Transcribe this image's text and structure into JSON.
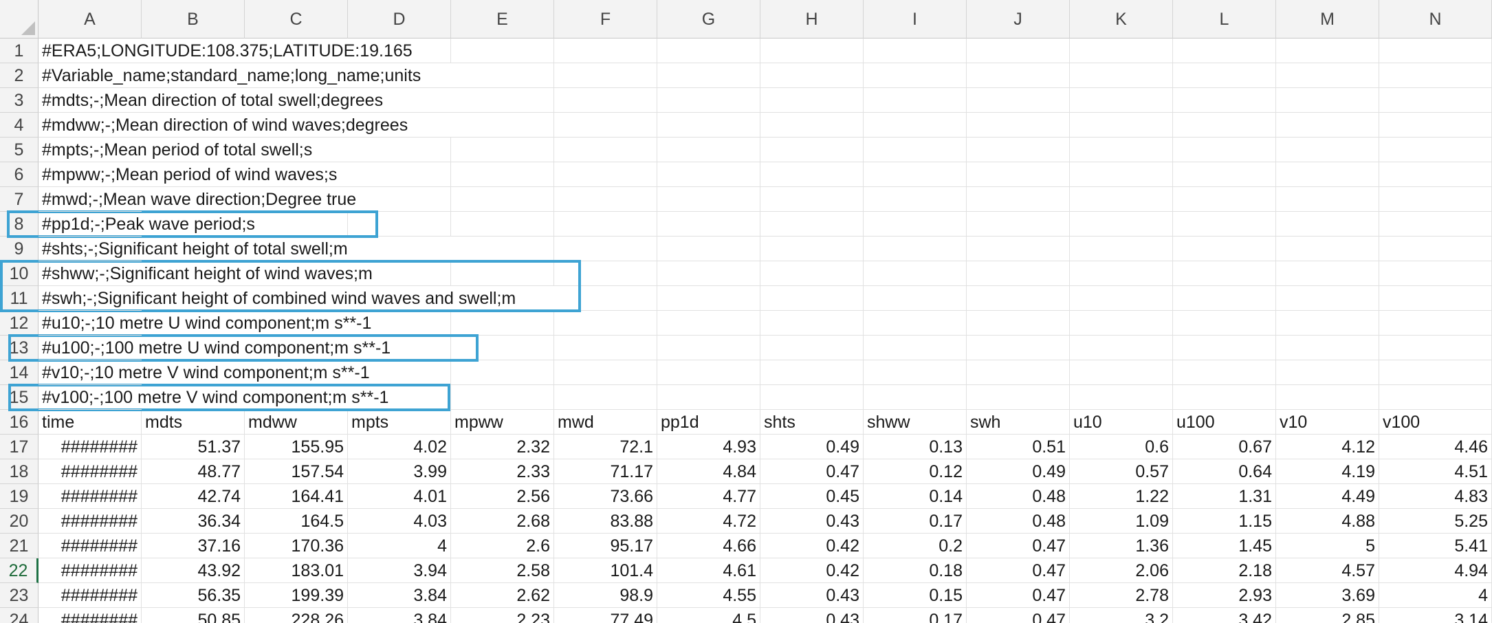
{
  "columns": [
    "A",
    "B",
    "C",
    "D",
    "E",
    "F",
    "G",
    "H",
    "I",
    "J",
    "K",
    "L",
    "M",
    "N"
  ],
  "metadata_rows": [
    {
      "row": "1",
      "text": "#ERA5;LONGITUDE:108.375;LATITUDE:19.165"
    },
    {
      "row": "2",
      "text": "#Variable_name;standard_name;long_name;units"
    },
    {
      "row": "3",
      "text": "#mdts;-;Mean direction of total swell;degrees"
    },
    {
      "row": "4",
      "text": "#mdww;-;Mean direction of wind waves;degrees"
    },
    {
      "row": "5",
      "text": "#mpts;-;Mean period of total swell;s"
    },
    {
      "row": "6",
      "text": "#mpww;-;Mean period of wind waves;s"
    },
    {
      "row": "7",
      "text": "#mwd;-;Mean wave direction;Degree true"
    },
    {
      "row": "8",
      "text": "#pp1d;-;Peak wave period;s"
    },
    {
      "row": "9",
      "text": "#shts;-;Significant height of total swell;m"
    },
    {
      "row": "10",
      "text": "#shww;-;Significant height of wind waves;m"
    },
    {
      "row": "11",
      "text": "#swh;-;Significant height of combined wind waves and swell;m"
    },
    {
      "row": "12",
      "text": "#u10;-;10 metre U wind component;m s**-1"
    },
    {
      "row": "13",
      "text": "#u100;-;100 metre U wind component;m s**-1"
    },
    {
      "row": "14",
      "text": "#v10;-;10 metre V wind component;m s**-1"
    },
    {
      "row": "15",
      "text": "#v100;-;100 metre V wind component;m s**-1"
    }
  ],
  "header_row": {
    "row": "16",
    "cells": [
      "time",
      "mdts",
      "mdww",
      "mpts",
      "mpww",
      "mwd",
      "pp1d",
      "shts",
      "shww",
      "swh",
      "u10",
      "u100",
      "v10",
      "v100"
    ]
  },
  "data_rows": [
    {
      "row": "17",
      "cells": [
        "########",
        "51.37",
        "155.95",
        "4.02",
        "2.32",
        "72.1",
        "4.93",
        "0.49",
        "0.13",
        "0.51",
        "0.6",
        "0.67",
        "4.12",
        "4.46"
      ]
    },
    {
      "row": "18",
      "cells": [
        "########",
        "48.77",
        "157.54",
        "3.99",
        "2.33",
        "71.17",
        "4.84",
        "0.47",
        "0.12",
        "0.49",
        "0.57",
        "0.64",
        "4.19",
        "4.51"
      ]
    },
    {
      "row": "19",
      "cells": [
        "########",
        "42.74",
        "164.41",
        "4.01",
        "2.56",
        "73.66",
        "4.77",
        "0.45",
        "0.14",
        "0.48",
        "1.22",
        "1.31",
        "4.49",
        "4.83"
      ]
    },
    {
      "row": "20",
      "cells": [
        "########",
        "36.34",
        "164.5",
        "4.03",
        "2.68",
        "83.88",
        "4.72",
        "0.43",
        "0.17",
        "0.48",
        "1.09",
        "1.15",
        "4.88",
        "5.25"
      ]
    },
    {
      "row": "21",
      "cells": [
        "########",
        "37.16",
        "170.36",
        "4",
        "2.6",
        "95.17",
        "4.66",
        "0.42",
        "0.2",
        "0.47",
        "1.36",
        "1.45",
        "5",
        "5.41"
      ]
    },
    {
      "row": "22",
      "cells": [
        "########",
        "43.92",
        "183.01",
        "3.94",
        "2.58",
        "101.4",
        "4.61",
        "0.42",
        "0.18",
        "0.47",
        "2.06",
        "2.18",
        "4.57",
        "4.94"
      ]
    },
    {
      "row": "23",
      "cells": [
        "########",
        "56.35",
        "199.39",
        "3.84",
        "2.62",
        "98.9",
        "4.55",
        "0.43",
        "0.15",
        "0.47",
        "2.78",
        "2.93",
        "3.69",
        "4"
      ]
    },
    {
      "row": "24",
      "cells": [
        "########",
        "50.85",
        "228.26",
        "3.84",
        "2.23",
        "77.49",
        "4.5",
        "0.43",
        "0.17",
        "0.47",
        "3.2",
        "3.42",
        "2.85",
        "3.14"
      ]
    }
  ],
  "active_row": "22",
  "highlight_color": "#3ea3d3",
  "highlights": [
    {
      "rows": [
        "8"
      ]
    },
    {
      "rows": [
        "10",
        "11"
      ]
    },
    {
      "rows": [
        "13"
      ]
    },
    {
      "rows": [
        "15"
      ]
    }
  ]
}
